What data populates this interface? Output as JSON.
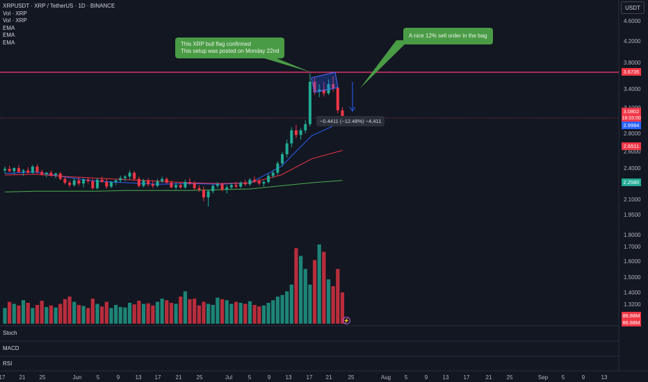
{
  "legend": {
    "symbol": "XRPUSDT · XRP / TetherUS · 1D · BINANCE",
    "lines": [
      "Vol · XRP",
      "Vol · XRP",
      "EMA",
      "EMA",
      "EMA"
    ]
  },
  "unit_button": "USDT",
  "annotations": {
    "callout_left": [
      "This XRP bull flag confirmed",
      "This setup was posted on Monday 22nd"
    ],
    "callout_right": "A nice 12% sell order in the bag",
    "measure": "−0.4411 (−12.48%) −4,411"
  },
  "panes": [
    "Stoch",
    "MACD",
    "RSI"
  ],
  "price_axis": [
    "4.6000",
    "4.2000",
    "3.8000",
    "3.4000",
    "3.1000",
    "2.8000",
    "2.6000",
    "2.4000",
    "2.2500",
    "2.1000",
    "1.9500",
    "1.8000",
    "1.7000",
    "1.6000",
    "1.5000",
    "1.4000",
    "1.3200"
  ],
  "price_tags": [
    {
      "text": "3.6735",
      "color": "#f23645"
    },
    {
      "text": "3.0802",
      "color": "#f23645"
    },
    {
      "text": "18:33:00",
      "color": "#f23645"
    },
    {
      "text": "2.9994",
      "color": "#2962ff"
    },
    {
      "text": "2.6511",
      "color": "#f23645"
    },
    {
      "text": "2.2580",
      "color": "#22ab94"
    },
    {
      "text": "86.88M",
      "color": "#f23645"
    },
    {
      "text": "86.88M",
      "color": "#f23645"
    }
  ],
  "time_axis": [
    "17",
    "21",
    "25",
    "Jun",
    "5",
    "9",
    "13",
    "17",
    "21",
    "25",
    "Jul",
    "5",
    "9",
    "13",
    "17",
    "21",
    "25",
    "Aug",
    "5",
    "9",
    "13",
    "17",
    "21",
    "25",
    "Sep",
    "5",
    "9",
    "13"
  ],
  "colors": {
    "up": "#22ab94",
    "down": "#f23645",
    "ema_fast": "#2962ff",
    "ema_mid": "#f23645",
    "ema_slow": "#4caf50",
    "resistance": "#ff3b7a"
  },
  "chart_data": {
    "type": "candlestick",
    "interval": "1D",
    "resistance_level": 3.6735,
    "last_price": 3.0802,
    "ohlc": [
      [
        2.4,
        2.45,
        2.36,
        2.42
      ],
      [
        2.42,
        2.46,
        2.38,
        2.39
      ],
      [
        2.39,
        2.44,
        2.35,
        2.43
      ],
      [
        2.43,
        2.47,
        2.37,
        2.38
      ],
      [
        2.38,
        2.42,
        2.33,
        2.4
      ],
      [
        2.4,
        2.44,
        2.36,
        2.37
      ],
      [
        2.37,
        2.47,
        2.35,
        2.45
      ],
      [
        2.45,
        2.48,
        2.36,
        2.38
      ],
      [
        2.38,
        2.41,
        2.33,
        2.35
      ],
      [
        2.35,
        2.38,
        2.31,
        2.37
      ],
      [
        2.37,
        2.4,
        2.32,
        2.34
      ],
      [
        2.34,
        2.37,
        2.3,
        2.36
      ],
      [
        2.36,
        2.38,
        2.27,
        2.29
      ],
      [
        2.29,
        2.31,
        2.22,
        2.24
      ],
      [
        2.24,
        2.27,
        2.18,
        2.21
      ],
      [
        2.21,
        2.3,
        2.19,
        2.27
      ],
      [
        2.27,
        2.31,
        2.2,
        2.23
      ],
      [
        2.23,
        2.3,
        2.18,
        2.28
      ],
      [
        2.28,
        2.31,
        2.23,
        2.26
      ],
      [
        2.26,
        2.29,
        2.15,
        2.17
      ],
      [
        2.17,
        2.3,
        2.15,
        2.28
      ],
      [
        2.28,
        2.32,
        2.24,
        2.25
      ],
      [
        2.25,
        2.29,
        2.16,
        2.19
      ],
      [
        2.19,
        2.26,
        2.17,
        2.25
      ],
      [
        2.25,
        2.29,
        2.21,
        2.27
      ],
      [
        2.27,
        2.33,
        2.24,
        2.3
      ],
      [
        2.3,
        2.34,
        2.26,
        2.32
      ],
      [
        2.32,
        2.4,
        2.28,
        2.37
      ],
      [
        2.37,
        2.39,
        2.27,
        2.29
      ],
      [
        2.29,
        2.32,
        2.18,
        2.2
      ],
      [
        2.2,
        2.29,
        2.18,
        2.27
      ],
      [
        2.27,
        2.3,
        2.19,
        2.22
      ],
      [
        2.22,
        2.27,
        2.17,
        2.2
      ],
      [
        2.2,
        2.29,
        2.18,
        2.26
      ],
      [
        2.26,
        2.32,
        2.24,
        2.29
      ],
      [
        2.29,
        2.31,
        2.23,
        2.24
      ],
      [
        2.24,
        2.27,
        2.17,
        2.18
      ],
      [
        2.18,
        2.24,
        2.15,
        2.21
      ],
      [
        2.21,
        2.25,
        2.16,
        2.18
      ],
      [
        2.18,
        2.28,
        2.16,
        2.25
      ],
      [
        2.25,
        2.3,
        2.21,
        2.23
      ],
      [
        2.23,
        2.26,
        2.15,
        2.17
      ],
      [
        2.17,
        2.21,
        2.12,
        2.15
      ],
      [
        2.15,
        2.19,
        2.0,
        2.05
      ],
      [
        2.05,
        2.15,
        1.93,
        2.13
      ],
      [
        2.13,
        2.22,
        2.1,
        2.2
      ],
      [
        2.2,
        2.25,
        2.17,
        2.22
      ],
      [
        2.22,
        2.24,
        2.13,
        2.15
      ],
      [
        2.15,
        2.21,
        2.1,
        2.18
      ],
      [
        2.18,
        2.24,
        2.16,
        2.21
      ],
      [
        2.21,
        2.25,
        2.17,
        2.19
      ],
      [
        2.19,
        2.26,
        2.17,
        2.24
      ],
      [
        2.24,
        2.28,
        2.2,
        2.22
      ],
      [
        2.22,
        2.3,
        2.2,
        2.28
      ],
      [
        2.28,
        2.32,
        2.24,
        2.26
      ],
      [
        2.26,
        2.29,
        2.21,
        2.23
      ],
      [
        2.23,
        2.27,
        2.19,
        2.25
      ],
      [
        2.25,
        2.36,
        2.23,
        2.33
      ],
      [
        2.33,
        2.4,
        2.3,
        2.37
      ],
      [
        2.37,
        2.52,
        2.34,
        2.49
      ],
      [
        2.49,
        2.64,
        2.45,
        2.61
      ],
      [
        2.61,
        2.8,
        2.57,
        2.75
      ],
      [
        2.75,
        2.96,
        2.7,
        2.92
      ],
      [
        2.92,
        2.99,
        2.82,
        2.86
      ],
      [
        2.86,
        2.95,
        2.8,
        2.92
      ],
      [
        2.92,
        3.05,
        2.88,
        3.0
      ],
      [
        3.0,
        3.66,
        2.97,
        3.55
      ],
      [
        3.55,
        3.6,
        3.38,
        3.42
      ],
      [
        3.42,
        3.52,
        3.35,
        3.45
      ],
      [
        3.45,
        3.55,
        3.36,
        3.4
      ],
      [
        3.4,
        3.58,
        3.38,
        3.52
      ],
      [
        3.52,
        3.62,
        3.42,
        3.47
      ],
      [
        3.47,
        3.5,
        3.14,
        3.18
      ],
      [
        3.18,
        3.22,
        3.04,
        3.08
      ]
    ],
    "volume": [
      0.3,
      0.42,
      0.38,
      0.35,
      0.45,
      0.4,
      0.3,
      0.36,
      0.44,
      0.32,
      0.35,
      0.31,
      0.38,
      0.47,
      0.52,
      0.42,
      0.36,
      0.34,
      0.3,
      0.48,
      0.38,
      0.33,
      0.42,
      0.3,
      0.36,
      0.32,
      0.31,
      0.4,
      0.37,
      0.44,
      0.38,
      0.39,
      0.35,
      0.42,
      0.48,
      0.45,
      0.4,
      0.38,
      0.52,
      0.62,
      0.47,
      0.48,
      0.35,
      0.42,
      0.38,
      0.36,
      0.5,
      0.47,
      0.45,
      0.38,
      0.42,
      0.4,
      0.38,
      0.43,
      0.36,
      0.33,
      0.35,
      0.4,
      0.45,
      0.52,
      0.55,
      0.62,
      0.75,
      1.45,
      1.3,
      1.05,
      0.75,
      1.22,
      1.52,
      1.38,
      0.85,
      0.72,
      1.05,
      0.6
    ],
    "ema": [
      {
        "values": [
          2.36,
          2.38,
          2.31,
          2.26,
          2.24,
          2.22,
          2.23,
          2.22,
          2.24,
          2.45,
          2.85,
          3.03
        ]
      },
      {
        "values": [
          2.34,
          2.35,
          2.32,
          2.3,
          2.28,
          2.26,
          2.24,
          2.23,
          2.24,
          2.34,
          2.55,
          2.66
        ]
      },
      {
        "values": [
          2.12,
          2.13,
          2.13,
          2.13,
          2.14,
          2.14,
          2.14,
          2.15,
          2.16,
          2.2,
          2.24,
          2.27
        ]
      }
    ]
  }
}
